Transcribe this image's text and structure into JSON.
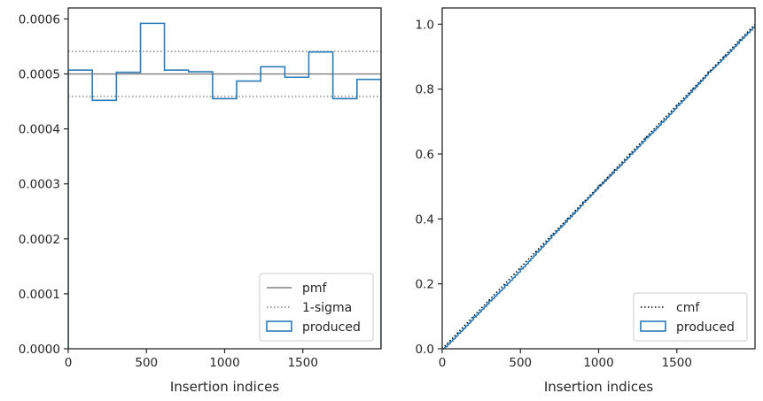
{
  "chart_data": [
    {
      "type": "histogram",
      "xlabel": "Insertion indices",
      "ylabel": "",
      "xlim": [
        0,
        2000
      ],
      "ylim": [
        0,
        0.00062
      ],
      "xticks": [
        0,
        500,
        1000,
        1500
      ],
      "xtick_labels": [
        "0",
        "500",
        "1000",
        "1500"
      ],
      "yticks": [
        0,
        0.0001,
        0.0002,
        0.0003,
        0.0004,
        0.0005,
        0.0006
      ],
      "ytick_labels": [
        "0.0000",
        "0.0001",
        "0.0002",
        "0.0003",
        "0.0004",
        "0.0005",
        "0.0006"
      ],
      "grid": false,
      "legend_position": "lower-right",
      "bin_edges": [
        0,
        154,
        308,
        462,
        615,
        769,
        923,
        1077,
        1231,
        1385,
        1538,
        1692,
        1846,
        2000
      ],
      "values": [
        0.000507,
        0.000452,
        0.000503,
        0.000592,
        0.000507,
        0.000504,
        0.000455,
        0.000487,
        0.000513,
        0.000494,
        0.00054,
        0.000455,
        0.00049
      ],
      "reference_lines": [
        {
          "label": "pmf",
          "y": 0.0005,
          "style": "solid",
          "color": "#808080"
        },
        {
          "label": "1-sigma",
          "y": 0.000541,
          "style": "dotted",
          "color": "#808080"
        },
        {
          "y": 0.000459,
          "style": "dotted",
          "color": "#808080"
        }
      ],
      "series": [
        {
          "name": "produced",
          "color": "#2b7bb9"
        }
      ],
      "legend": [
        "pmf",
        "1-sigma",
        "produced"
      ]
    },
    {
      "type": "line",
      "xlabel": "Insertion indices",
      "ylabel": "",
      "xlim": [
        0,
        2000
      ],
      "ylim": [
        0,
        1.05
      ],
      "xticks": [
        0,
        500,
        1000,
        1500
      ],
      "xtick_labels": [
        "0",
        "500",
        "1000",
        "1500"
      ],
      "yticks": [
        0,
        0.2,
        0.4,
        0.6,
        0.8,
        1.0
      ],
      "ytick_labels": [
        "0.0",
        "0.2",
        "0.4",
        "0.6",
        "0.8",
        "1.0"
      ],
      "grid": false,
      "legend_position": "lower-right",
      "series": [
        {
          "name": "cmf",
          "style": "dotted",
          "color": "#000000",
          "x": [
            0,
            2000
          ],
          "y": [
            0,
            1.0
          ]
        },
        {
          "name": "produced",
          "style": "step",
          "color": "#2b7bb9",
          "x": [
            0,
            100,
            200,
            300,
            400,
            500,
            600,
            700,
            800,
            900,
            1000,
            1100,
            1200,
            1300,
            1400,
            1500,
            1600,
            1700,
            1800,
            1900,
            2000
          ],
          "y": [
            0,
            0.048,
            0.098,
            0.148,
            0.196,
            0.246,
            0.298,
            0.35,
            0.4,
            0.452,
            0.502,
            0.55,
            0.6,
            0.65,
            0.698,
            0.75,
            0.8,
            0.853,
            0.9,
            0.95,
            1.0
          ]
        }
      ],
      "legend": [
        "cmf",
        "produced"
      ]
    }
  ]
}
